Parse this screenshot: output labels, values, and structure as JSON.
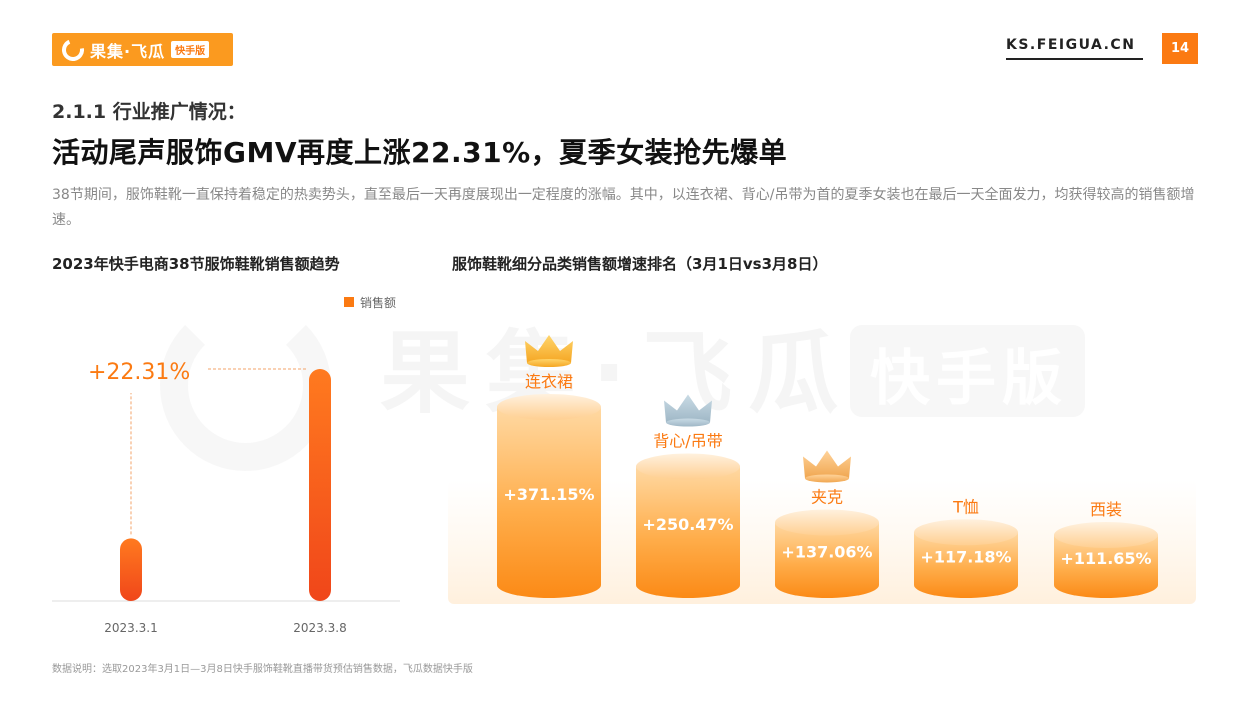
{
  "header": {
    "logo_brand": "果集·飞瓜",
    "logo_sub": "快手版",
    "site": "KS.FEIGUA.CN",
    "page_number": "14"
  },
  "section_title": "2.1.1 行业推广情况：",
  "headline": "活动尾声服饰GMV再度上涨22.31%，夏季女装抢先爆单",
  "description": "38节期间，服饰鞋靴一直保持着稳定的热卖势头，直至最后一天再度展现出一定程度的涨幅。其中，以连衣裙、背心/吊带为首的夏季女装也在最后一天全面发力，均获得较高的销售额增速。",
  "watermark": {
    "text": "果集·飞瓜",
    "sub": "快手版"
  },
  "colors": {
    "accent": "#fb7a12",
    "bar_top": "#ff6a1a",
    "bar_bottom": "#f0501a",
    "cyl_light": "#ffd79a",
    "cyl_dark": "#fb8f1c"
  },
  "chart_data": [
    {
      "type": "bar",
      "title": "2023年快手电商38节服饰鞋靴销售额趋势",
      "legend": "销售额",
      "categories": [
        "2023.3.1",
        "2023.3.8"
      ],
      "values": [
        27,
        100
      ],
      "annotation": "+22.31%"
    },
    {
      "type": "bar",
      "title": "服饰鞋靴细分品类销售额增速排名（3月1日vs3月8日）",
      "categories": [
        "连衣裙",
        "背心/吊带",
        "夹克",
        "T恤",
        "西装"
      ],
      "labels": [
        "+371.15%",
        "+250.47%",
        "+137.06%",
        "+117.18%",
        "+111.65%"
      ],
      "values": [
        371.15,
        250.47,
        137.06,
        117.18,
        111.65
      ],
      "crowns": [
        "gold",
        "silver",
        "bronze"
      ]
    }
  ],
  "footnote": "数据说明：选取2023年3月1日—3月8日快手服饰鞋靴直播带货预估销售数据，飞瓜数据快手版"
}
